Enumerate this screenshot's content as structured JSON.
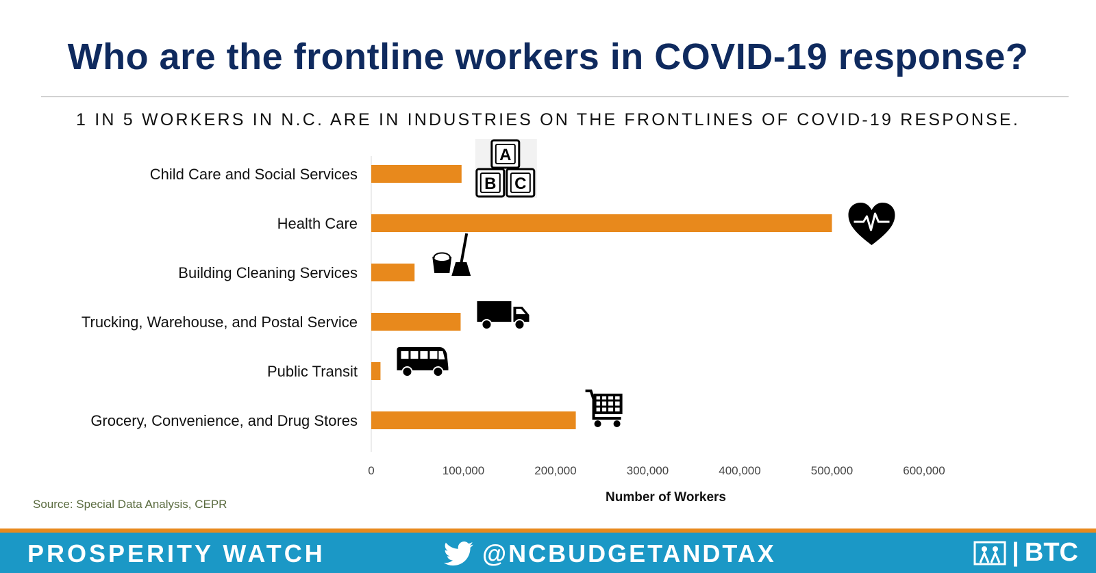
{
  "title": "Who are the frontline workers in COVID-19 response?",
  "subtitle": "1 IN 5 WORKERS IN N.C. ARE IN INDUSTRIES ON THE FRONTLINES OF COVID-19 RESPONSE.",
  "source": "Source: Special Data Analysis, CEPR",
  "colors": {
    "bar": "#e8891c",
    "title": "#0f2a5e",
    "footer": "#1b98c6",
    "strip": "#e8891c"
  },
  "chart_data": {
    "type": "bar",
    "orientation": "horizontal",
    "categories": [
      "Child Care and Social Services",
      "Health Care",
      "Building Cleaning Services",
      "Trucking, Warehouse, and Postal Service",
      "Public Transit",
      "Grocery, Convenience, and Drug Stores"
    ],
    "values": [
      98000,
      500000,
      47000,
      97000,
      10000,
      222000
    ],
    "icons": [
      "abc-blocks-icon",
      "heartbeat-icon",
      "bucket-broom-icon",
      "truck-icon",
      "bus-icon",
      "shopping-cart-icon"
    ],
    "xlabel": "Number of Workers",
    "xlim": [
      0,
      600000
    ],
    "xticks": [
      "0",
      "100,000",
      "200,000",
      "300,000",
      "400,000",
      "500,000",
      "600,000"
    ],
    "grid": false,
    "legend": "none"
  },
  "footer": {
    "left": "PROSPERITY WATCH",
    "handle": "@NCBUDGETANDTAX",
    "brand": "BTC",
    "brand_separator": "|"
  }
}
